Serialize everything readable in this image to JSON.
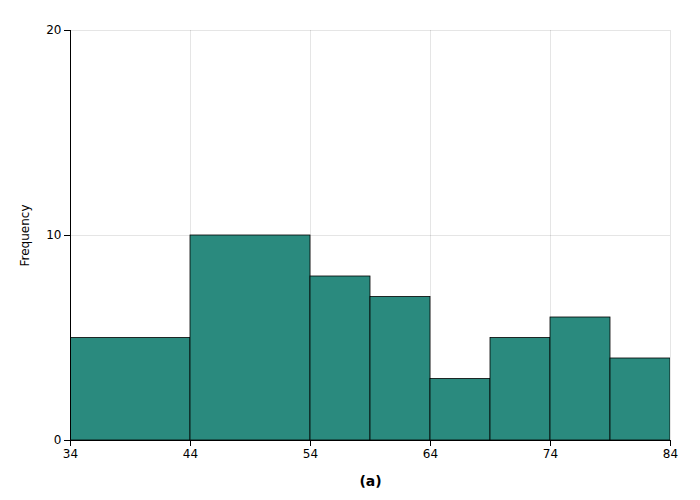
{
  "chart_data": {
    "type": "histogram",
    "bins": [
      34,
      44,
      54,
      59,
      64,
      69,
      74,
      79,
      84
    ],
    "values": [
      5,
      10,
      8,
      7,
      3,
      5,
      6,
      4
    ],
    "color": "#2a8a7e",
    "xlim": [
      34,
      84
    ],
    "ylim": [
      0,
      20
    ],
    "xticks": [
      34,
      44,
      54,
      64,
      74,
      84
    ],
    "yticks": [
      0,
      10,
      20
    ],
    "xlabel": "(a)",
    "ylabel": "Frequency",
    "grid": true
  }
}
